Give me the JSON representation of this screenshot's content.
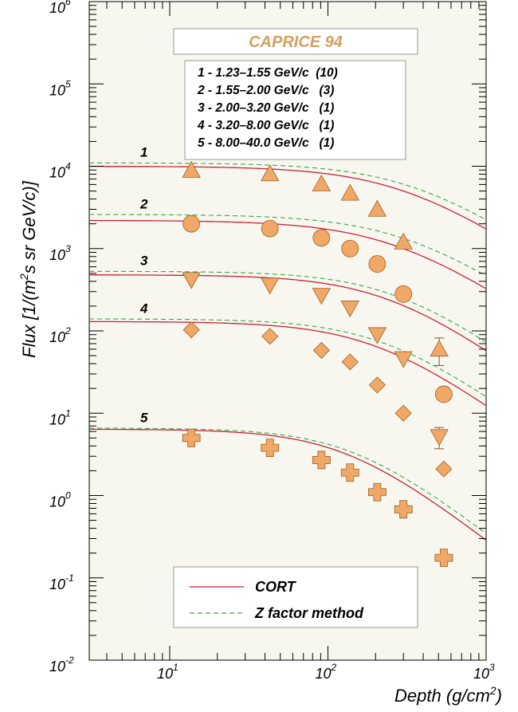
{
  "chart_data": {
    "type": "scatter",
    "title": "CAPRICE 94",
    "title_color": "#d2a060",
    "xlabel": "Depth (g/cm",
    "xlabel_sup": "2",
    "xlabel_end": ")",
    "ylabel": "Flux [1/(m",
    "ylabel_sup": "2",
    "ylabel_end": "s sr GeV/c)]",
    "xscale": "log",
    "yscale": "log",
    "xlim": [
      3.1,
      1000
    ],
    "ylim": [
      0.01,
      1000000
    ],
    "grid": false,
    "background": "#f7f7f0",
    "marker_color": "#f0a868",
    "cort_color": "#cc2233",
    "zfactor_color": "#33aa44",
    "x_tick_labels": [
      {
        "base": "10",
        "exp": "1",
        "value": 10
      },
      {
        "base": "10",
        "exp": "2",
        "value": 100
      },
      {
        "base": "10",
        "exp": "3",
        "value": 1000
      }
    ],
    "y_tick_labels": [
      {
        "base": "10",
        "exp": "-2",
        "value": 0.01
      },
      {
        "base": "10",
        "exp": "-1",
        "value": 0.1
      },
      {
        "base": "10",
        "exp": "0",
        "value": 1
      },
      {
        "base": "10",
        "exp": "1",
        "value": 10
      },
      {
        "base": "10",
        "exp": "2",
        "value": 100
      },
      {
        "base": "10",
        "exp": "3",
        "value": 1000
      },
      {
        "base": "10",
        "exp": "4",
        "value": 10000
      },
      {
        "base": "10",
        "exp": "5",
        "value": 100000
      },
      {
        "base": "10",
        "exp": "6",
        "value": 1000000
      }
    ],
    "info_lines": [
      "1 - 1.23–1.55 GeV/c  (10)",
      "2 - 1.55–2.00 GeV/c   (3)",
      "3 - 2.00–3.20 GeV/c   (1)",
      "4 - 3.20–8.00 GeV/c   (1)",
      "5 - 8.00–40.0 GeV/c   (1)"
    ],
    "legend": {
      "position": "bottom-center",
      "entries": [
        {
          "label": "CORT",
          "style": "solid",
          "color": "#cc2233"
        },
        {
          "label": "Z factor method",
          "style": "dashed",
          "color": "#33aa44"
        }
      ]
    },
    "series": [
      {
        "name": "1",
        "marker": "triangle-up",
        "x": [
          13.7,
          43,
          91,
          138,
          205,
          300,
          505
        ],
        "y": [
          8900,
          8100,
          6100,
          4700,
          3000,
          1200,
          60
        ],
        "yerr": [
          0,
          0,
          0,
          0,
          0,
          0,
          22
        ],
        "cort": {
          "a": 10000,
          "d0": 300,
          "p": 1.3
        },
        "zfactor": {
          "a": 11000,
          "d0": 350,
          "p": 1.3
        }
      },
      {
        "name": "2",
        "marker": "circle",
        "x": [
          13.7,
          43,
          91,
          138,
          205,
          300,
          540
        ],
        "y": [
          2000,
          1750,
          1350,
          1000,
          650,
          280,
          17
        ],
        "yerr": [
          0,
          0,
          0,
          0,
          0,
          0,
          0
        ],
        "cort": {
          "a": 2200,
          "d0": 260,
          "p": 1.3
        },
        "zfactor": {
          "a": 2600,
          "d0": 310,
          "p": 1.3
        }
      },
      {
        "name": "3",
        "marker": "triangle-down",
        "x": [
          13.7,
          43,
          91,
          138,
          205,
          300,
          505
        ],
        "y": [
          420,
          360,
          270,
          190,
          90,
          46,
          5.2
        ],
        "yerr": [
          0,
          0,
          0,
          0,
          0,
          0,
          1.5
        ],
        "cort": {
          "a": 480,
          "d0": 240,
          "p": 1.4
        },
        "zfactor": {
          "a": 530,
          "d0": 270,
          "p": 1.4
        }
      },
      {
        "name": "4",
        "marker": "diamond",
        "x": [
          13.7,
          43,
          91,
          138,
          205,
          300,
          540
        ],
        "y": [
          103,
          86,
          58,
          42,
          22,
          10,
          2.1
        ],
        "yerr": [
          0,
          0,
          0,
          0,
          0,
          0,
          0
        ],
        "cort": {
          "a": 130,
          "d0": 200,
          "p": 1.4
        },
        "zfactor": {
          "a": 140,
          "d0": 230,
          "p": 1.4
        }
      },
      {
        "name": "5",
        "marker": "cross",
        "x": [
          13.7,
          43,
          91,
          138,
          205,
          300,
          540
        ],
        "y": [
          5.0,
          3.8,
          2.7,
          1.9,
          1.1,
          0.68,
          0.175
        ],
        "yerr": [
          0,
          0,
          0,
          0,
          0,
          0,
          0
        ],
        "cort": {
          "a": 6.4,
          "d0": 130,
          "p": 1.5
        },
        "zfactor": {
          "a": 6.6,
          "d0": 145,
          "p": 1.5
        }
      }
    ]
  }
}
